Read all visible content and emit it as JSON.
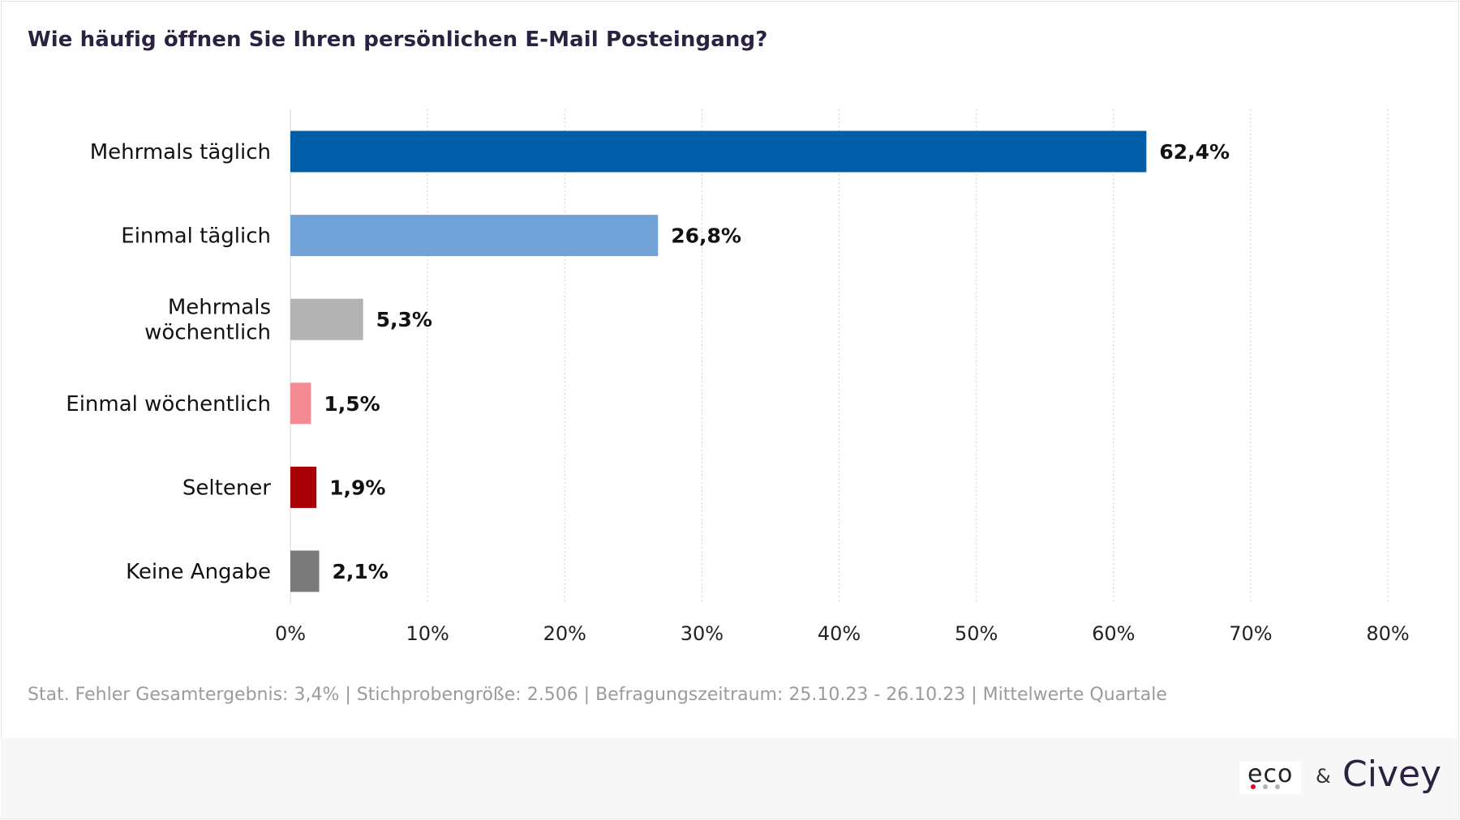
{
  "chart_data": {
    "type": "bar",
    "orientation": "horizontal",
    "title": "Wie häufig öffnen Sie Ihren persönlichen E-Mail Posteingang?",
    "categories": [
      "Mehrmals täglich",
      "Einmal täglich",
      "Mehrmals wöchentlich",
      "Einmal wöchentlich",
      "Seltener",
      "Keine Angabe"
    ],
    "category_lines": [
      [
        "Mehrmals täglich"
      ],
      [
        "Einmal täglich"
      ],
      [
        "Mehrmals",
        "wöchentlich"
      ],
      [
        "Einmal wöchentlich"
      ],
      [
        "Seltener"
      ],
      [
        "Keine Angabe"
      ]
    ],
    "values": [
      62.4,
      26.8,
      5.3,
      1.5,
      1.9,
      2.1
    ],
    "value_labels": [
      "62,4%",
      "26,8%",
      "5,3%",
      "1,5%",
      "1,9%",
      "2,1%"
    ],
    "colors": [
      "#005ea8",
      "#72a3d8",
      "#b3b3b3",
      "#f28b94",
      "#a80008",
      "#7a7a7a"
    ],
    "xlim": [
      0,
      80
    ],
    "xticks": [
      0,
      10,
      20,
      30,
      40,
      50,
      60,
      70,
      80
    ],
    "xtick_labels": [
      "0%",
      "10%",
      "20%",
      "30%",
      "40%",
      "50%",
      "60%",
      "70%",
      "80%"
    ],
    "grid": "vertical dotted",
    "legend": "none"
  },
  "footnote": "Stat. Fehler Gesamtergebnis: 3,4% | Stichprobengröße: 2.506 | Befragungszeitraum: 25.10.23 - 26.10.23 | Mittelwerte Quartale",
  "branding": {
    "eco_text": "eco",
    "eco_dot_colors": [
      "#e2001a",
      "#b3b3b3",
      "#b3b3b3"
    ],
    "ampersand": "&",
    "civey_text": "Civey"
  }
}
